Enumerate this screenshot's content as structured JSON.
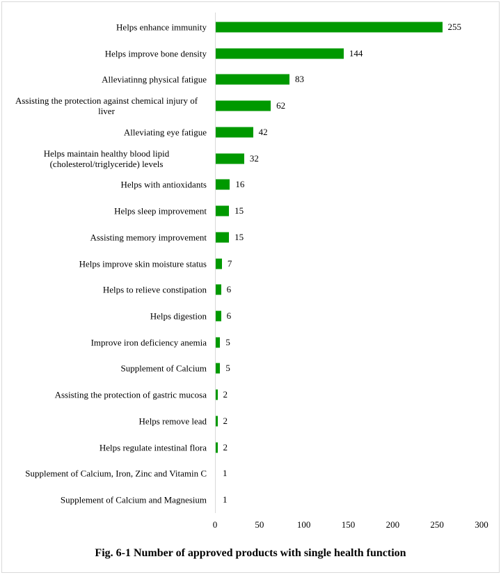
{
  "chart_data": {
    "type": "bar",
    "orientation": "horizontal",
    "title": "Fig. 6-1 Number of approved products with single health function",
    "xlabel": "",
    "ylabel": "",
    "xlim": [
      0,
      300
    ],
    "xticks": [
      0,
      50,
      100,
      150,
      200,
      250,
      300
    ],
    "grid": false,
    "color": "#009900",
    "categories": [
      "Helps enhance immunity",
      "Helps improve bone density",
      "Alleviatinng physical fatigue",
      "Assisting the protection against chemical injury of liver",
      "Alleviating eye fatigue",
      "Helps maintain healthy blood lipid (cholesterol/triglyceride) levels",
      "Helps with antioxidants",
      "Helps sleep improvement",
      "Assisting memory improvement",
      "Helps improve skin moisture status",
      "Helps to relieve constipation",
      "Helps digestion",
      "Improve iron deficiency anemia",
      "Supplement of Calcium",
      "Assisting the protection of gastric mucosa",
      "Helps remove lead",
      "Helps regulate intestinal flora",
      "Supplement of Calcium, Iron, Zinc and Vitamin C",
      "Supplement of Calcium and  Magnesium"
    ],
    "values": [
      255,
      144,
      83,
      62,
      42,
      32,
      16,
      15,
      15,
      7,
      6,
      6,
      5,
      5,
      2,
      2,
      2,
      1,
      1
    ]
  }
}
